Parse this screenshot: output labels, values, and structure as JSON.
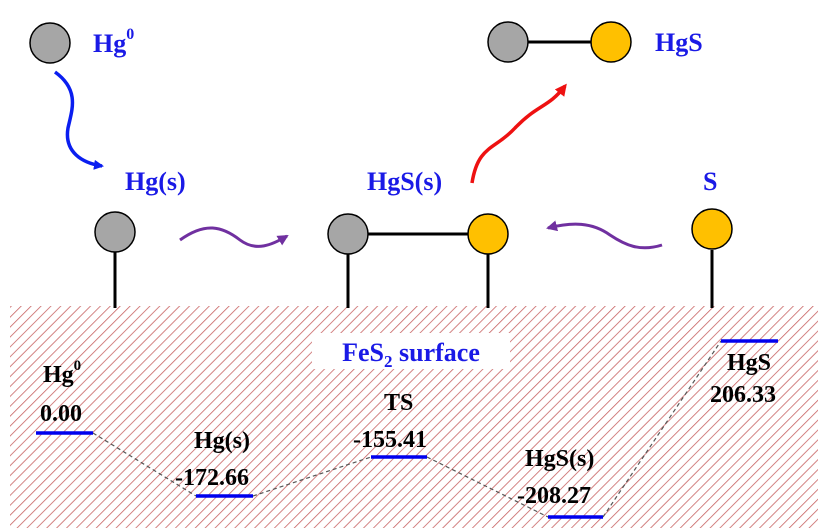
{
  "colors": {
    "mercury_atom": "#a6a6a6",
    "sulfur_atom": "#ffc000",
    "label_blue": "#1a1ae6",
    "arrow_blue": "#0a1ef0",
    "arrow_red": "#ee1111",
    "arrow_purple": "#7030a0",
    "hatch_red": "#c86464",
    "energy_level": "#0000ee",
    "text_black": "#000000"
  },
  "species_labels": {
    "hg0_base": "Hg",
    "hg0_sup": "0",
    "hgs_gas": "HgS",
    "hg_ads": "Hg(s)",
    "hgs_ads": "HgS(s)",
    "s_ads": "S"
  },
  "surface": {
    "label_main": "FeS",
    "label_sub": "2",
    "label_tail": " surface"
  },
  "energy_levels": [
    {
      "name_base": "Hg",
      "name_sup": "0",
      "value": "0.00"
    },
    {
      "name_base": "Hg(s)",
      "name_sup": "",
      "value": "-172.66"
    },
    {
      "name_base": "TS",
      "name_sup": "",
      "value": "-155.41"
    },
    {
      "name_base": "HgS(s)",
      "name_sup": "",
      "value": "-208.27"
    },
    {
      "name_base": "HgS",
      "name_sup": "",
      "value": "206.33"
    }
  ]
}
